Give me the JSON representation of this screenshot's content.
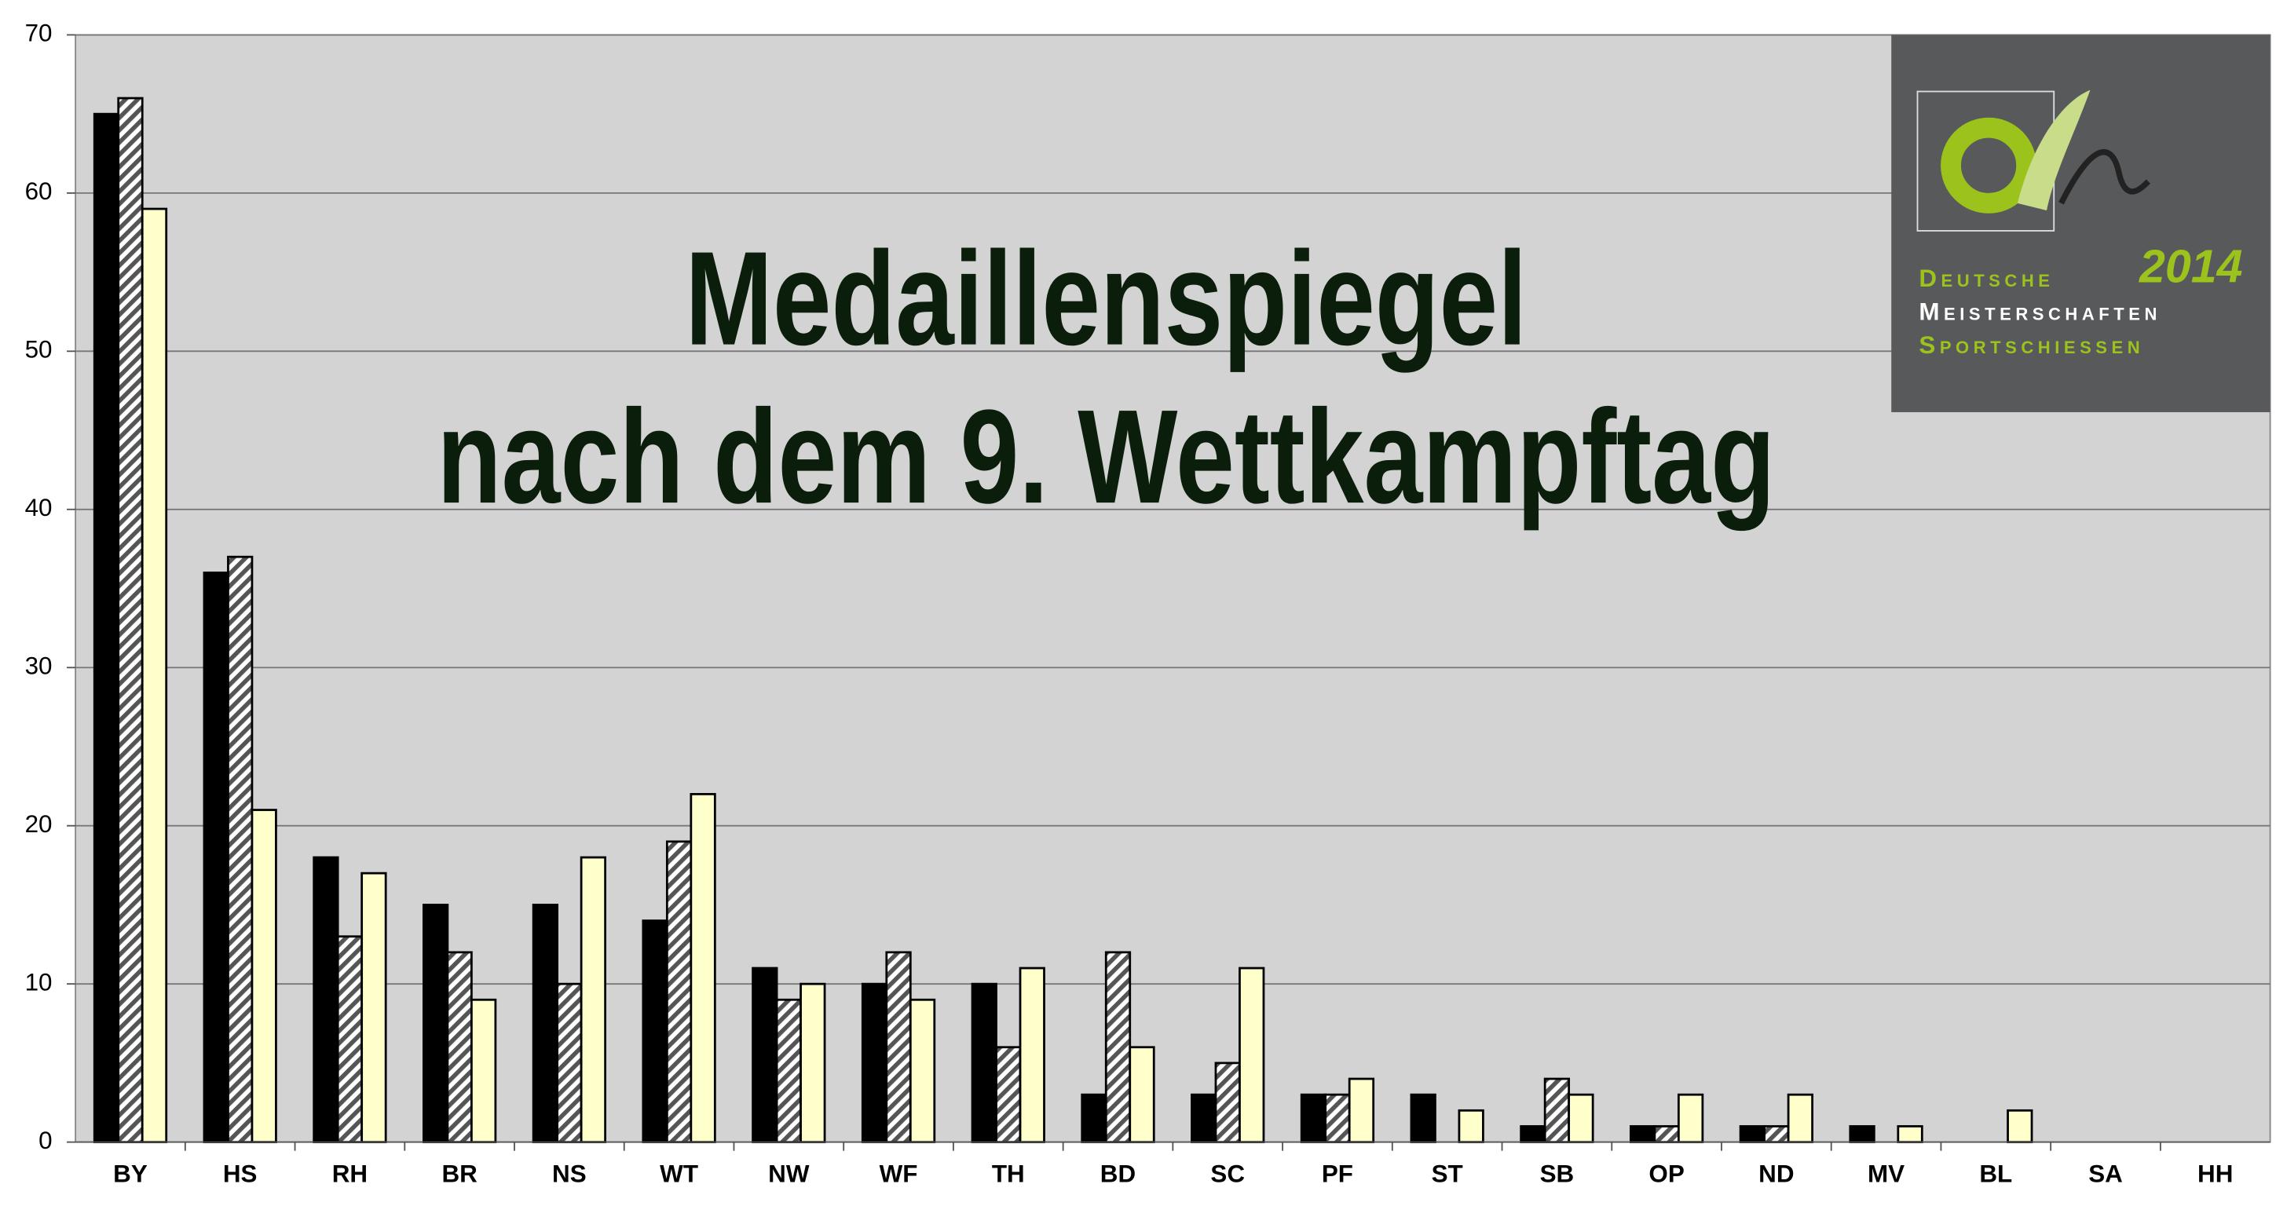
{
  "chart_data": {
    "type": "bar",
    "title": [
      "Medaillenspiegel",
      "nach dem 9. Wettkampftag"
    ],
    "logo": {
      "line1": "Deutsche",
      "year": "2014",
      "line2": "Meisterschaften",
      "line3": "Sportschiessen"
    },
    "categories": [
      "BY",
      "HS",
      "RH",
      "BR",
      "NS",
      "WT",
      "NW",
      "WF",
      "TH",
      "BD",
      "SC",
      "PF",
      "ST",
      "SB",
      "OP",
      "ND",
      "MV",
      "BL",
      "SA",
      "HH"
    ],
    "series": [
      {
        "color": "#000000",
        "values": [
          65,
          36,
          18,
          15,
          15,
          14,
          11,
          10,
          10,
          3,
          3,
          3,
          3,
          1,
          1,
          1,
          1,
          0,
          0,
          0
        ]
      },
      {
        "color": "hatch",
        "values": [
          66,
          37,
          13,
          12,
          10,
          19,
          9,
          12,
          6,
          12,
          5,
          3,
          0,
          4,
          1,
          1,
          0,
          0,
          0,
          0
        ]
      },
      {
        "color": "#ffffcc",
        "values": [
          59,
          21,
          17,
          9,
          18,
          22,
          10,
          9,
          11,
          6,
          11,
          4,
          2,
          3,
          3,
          3,
          1,
          2,
          0,
          0
        ]
      }
    ],
    "ylim": [
      0,
      70
    ],
    "yticks": [
      0,
      10,
      20,
      30,
      40,
      50,
      60,
      70
    ],
    "grid": true
  }
}
